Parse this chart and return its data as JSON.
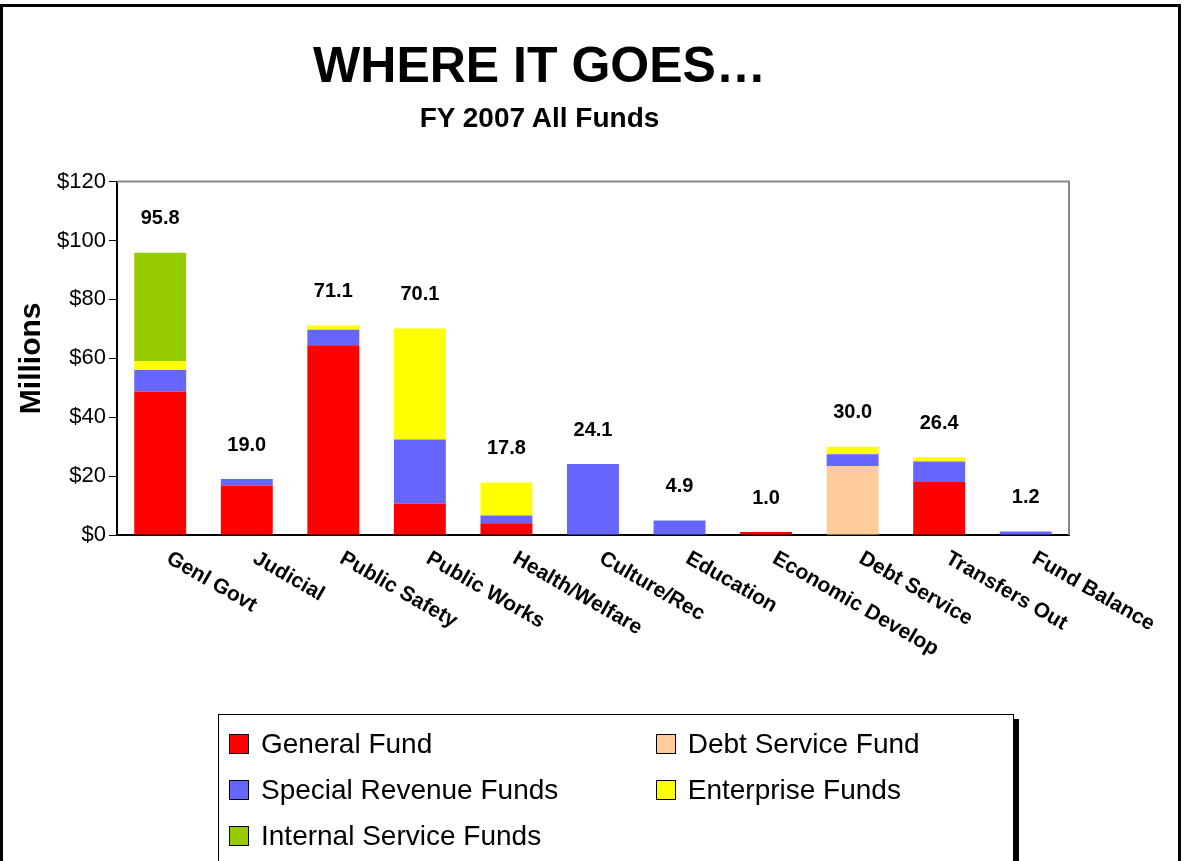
{
  "chart_data": {
    "type": "bar",
    "title": "WHERE IT GOES…",
    "subtitle": "FY 2007 All Funds",
    "ylabel": "Millions",
    "stacked": true,
    "legend": "bottom",
    "grid": false,
    "categories": [
      "Genl Govt",
      "Judicial",
      "Public Safety",
      "Public Works",
      "Health/Welfare",
      "Culture/Rec",
      "Education",
      "Economic Develop",
      "Debt Service",
      "Transfers Out",
      "Fund Balance"
    ],
    "series": [
      {
        "name": "General Fund",
        "color": "#ff0000",
        "values": [
          48.7,
          16.8,
          64.4,
          10.7,
          4.0,
          null,
          null,
          1.0,
          null,
          18.0,
          null
        ]
      },
      {
        "name": "Debt Service Fund",
        "color": "#ffcc99",
        "values": [
          null,
          null,
          null,
          null,
          null,
          null,
          null,
          null,
          23.4,
          null,
          null
        ]
      },
      {
        "name": "Special Revenue Funds",
        "color": "#6666ff",
        "values": [
          7.3,
          2.2,
          5.3,
          21.7,
          2.6,
          24.1,
          4.9,
          null,
          4.0,
          7.0,
          1.2
        ]
      },
      {
        "name": "Enterprise Funds",
        "color": "#ffff00",
        "values": [
          3.1,
          null,
          1.4,
          37.7,
          11.2,
          null,
          null,
          null,
          2.6,
          1.4,
          null
        ]
      },
      {
        "name": "Internal Service Funds",
        "color": "#99cc00",
        "values": [
          36.7,
          null,
          null,
          null,
          null,
          null,
          null,
          null,
          null,
          null,
          null
        ]
      }
    ],
    "totals": [
      "95.8",
      "19.0",
      "71.1",
      "70.1",
      "17.8",
      "24.1",
      "4.9",
      "1.0",
      "30.0",
      "26.4",
      "1.2"
    ],
    "ylim": [
      0,
      120
    ],
    "yticks": [
      {
        "value": 0,
        "label": "$0"
      },
      {
        "value": 20,
        "label": "$20"
      },
      {
        "value": 40,
        "label": "$40"
      },
      {
        "value": 60,
        "label": "$60"
      },
      {
        "value": 80,
        "label": "$80"
      },
      {
        "value": 100,
        "label": "$100"
      },
      {
        "value": 120,
        "label": "$120"
      }
    ]
  }
}
